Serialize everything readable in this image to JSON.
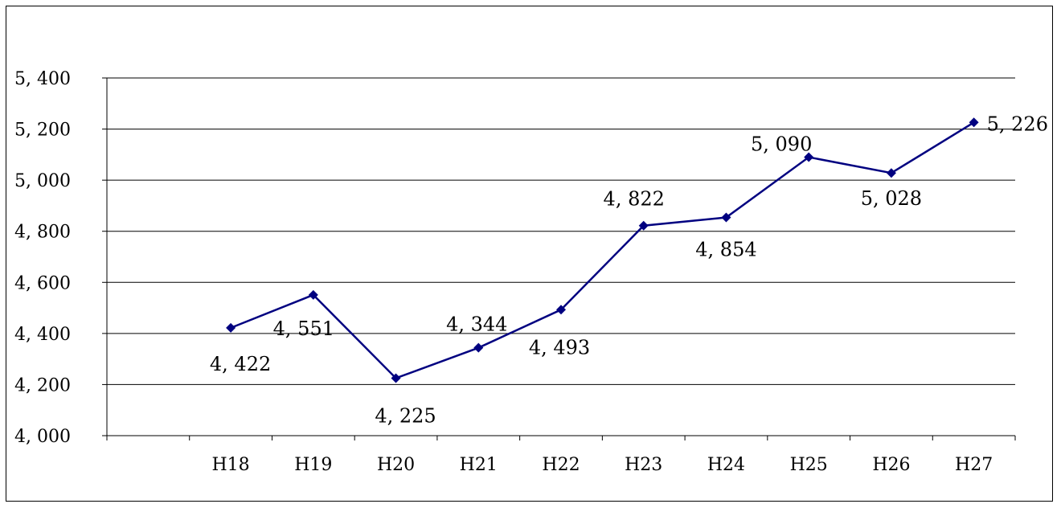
{
  "chart_data": {
    "type": "line",
    "categories": [
      "",
      "H18",
      "H19",
      "H20",
      "H21",
      "H22",
      "H23",
      "H24",
      "H25",
      "H26",
      "H27"
    ],
    "series": [
      {
        "values": [
          null,
          4422,
          4551,
          4225,
          4344,
          4493,
          4822,
          4854,
          5090,
          5028,
          5226
        ]
      }
    ],
    "data_labels": [
      "",
      "4, 422",
      "4, 551",
      "4, 225",
      "4, 344",
      "4, 493",
      "4, 822",
      "4, 854",
      "5, 090",
      "5, 028",
      "5, 226"
    ],
    "y_ticks": [
      4000,
      4200,
      4400,
      4600,
      4800,
      5000,
      5200,
      5400
    ],
    "y_tick_labels": [
      "4, 000",
      "4, 200",
      "4, 400",
      "4, 600",
      "4, 800",
      "5, 000",
      "5, 200",
      "5, 400"
    ],
    "ylim": [
      4000,
      5400
    ],
    "grid": true,
    "legend": "none",
    "title": "",
    "xlabel": "",
    "ylabel": "",
    "colors": {
      "line": "#000080",
      "marker": "#000080",
      "highlight_label": "#ff0000",
      "grid": "#000000"
    },
    "highlight_index": 10
  }
}
